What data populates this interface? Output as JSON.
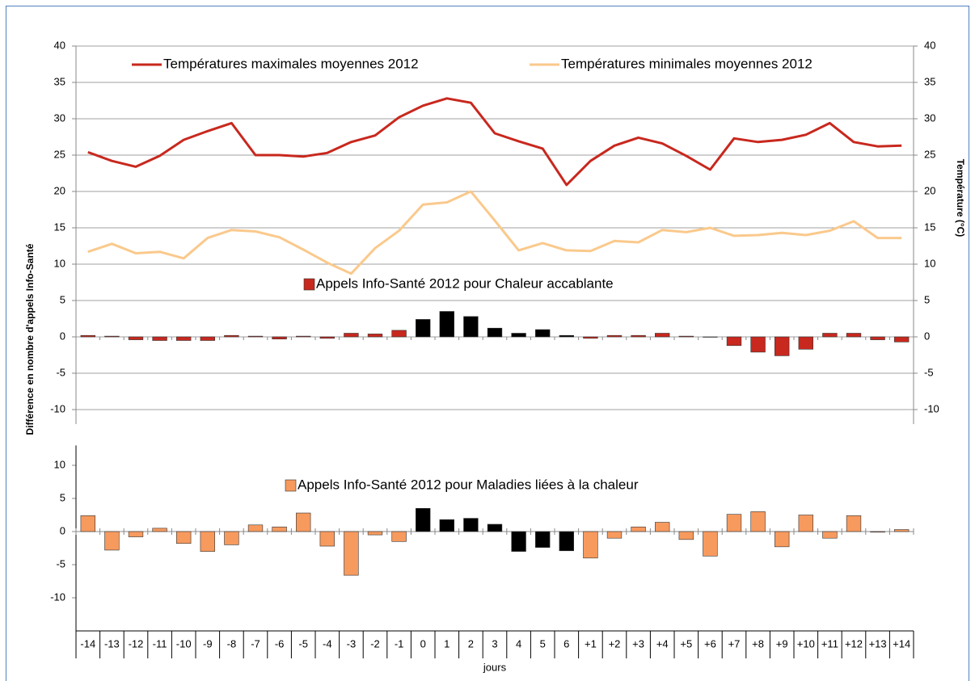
{
  "chart_data": [
    {
      "type": "combo",
      "ylabel": "Différence en nombre d'appels Info-Santé",
      "y2label": "Température (°C)",
      "ylim": [
        -12,
        40
      ],
      "yticks": [
        40,
        35,
        30,
        25,
        20,
        15,
        10,
        5,
        0,
        -5,
        -10
      ],
      "y2lim": [
        -12,
        40
      ],
      "y2ticks": [
        40,
        35,
        30,
        25,
        20,
        15,
        10,
        5,
        0,
        -5,
        -10
      ],
      "grid": true,
      "series": [
        {
          "name": "Températures maximales moyennes 2012",
          "type": "line",
          "axis": "y2",
          "color": "#c8281e",
          "values": [
            25.4,
            24.2,
            23.4,
            24.9,
            27.1,
            28.3,
            29.4,
            25.0,
            25.0,
            24.8,
            25.3,
            26.8,
            27.7,
            30.2,
            31.8,
            32.8,
            32.2,
            28.0,
            26.9,
            25.9,
            20.9,
            24.2,
            26.3,
            27.4,
            26.6,
            24.9,
            23.0,
            27.3,
            26.8,
            27.1,
            27.8,
            29.4,
            26.8,
            26.2,
            26.3
          ]
        },
        {
          "name": "Températures minimales moyennes 2012",
          "type": "line",
          "axis": "y2",
          "color": "#fac98c",
          "values": [
            11.7,
            12.8,
            11.5,
            11.7,
            10.8,
            13.6,
            14.7,
            14.5,
            13.7,
            12.0,
            10.2,
            8.7,
            12.2,
            14.6,
            18.2,
            18.5,
            20.0,
            16.0,
            11.9,
            12.9,
            11.9,
            11.8,
            13.2,
            13.0,
            14.7,
            14.4,
            15.0,
            13.9,
            14.0,
            14.3,
            14.0,
            14.6,
            15.9,
            13.6,
            13.6
          ]
        },
        {
          "name": "Appels Info-Santé 2012 pour Chaleur accablante",
          "type": "bar",
          "color": "#c8281e",
          "colors": [
            "#c8281e",
            "#c8281e",
            "#c8281e",
            "#c8281e",
            "#c8281e",
            "#c8281e",
            "#c8281e",
            "#c8281e",
            "#c8281e",
            "#c8281e",
            "#c8281e",
            "#c8281e",
            "#c8281e",
            "#c8281e",
            "#000000",
            "#000000",
            "#000000",
            "#000000",
            "#000000",
            "#000000",
            "#000000",
            "#c8281e",
            "#c8281e",
            "#c8281e",
            "#c8281e",
            "#c8281e",
            "#c8281e",
            "#c8281e",
            "#c8281e",
            "#c8281e",
            "#c8281e",
            "#c8281e",
            "#c8281e",
            "#c8281e",
            "#c8281e"
          ],
          "values": [
            0.2,
            0.1,
            -0.4,
            -0.5,
            -0.5,
            -0.5,
            0.2,
            0.1,
            -0.3,
            0.1,
            -0.2,
            0.5,
            0.4,
            0.9,
            2.4,
            3.5,
            2.8,
            1.2,
            0.5,
            1.0,
            0.2,
            -0.2,
            0.2,
            0.2,
            0.5,
            0.1,
            0,
            -1.2,
            -2.1,
            -2.6,
            -1.7,
            0.5,
            0.5,
            -0.4,
            -0.7
          ]
        }
      ]
    },
    {
      "type": "bar",
      "xlabel": "jours",
      "categories": [
        "-14",
        "-13",
        "-12",
        "-11",
        "-10",
        "-9",
        "-8",
        "-7",
        "-6",
        "-5",
        "-4",
        "-3",
        "-2",
        "-1",
        "0",
        "1",
        "2",
        "3",
        "4",
        "5",
        "6",
        "+1",
        "+2",
        "+3",
        "+4",
        "+5",
        "+6",
        "+7",
        "+8",
        "+9",
        "+10",
        "+11",
        "+12",
        "+13",
        "+14"
      ],
      "ylim": [
        -15,
        13
      ],
      "yticks": [
        10,
        5,
        0,
        -5,
        -10
      ],
      "series": [
        {
          "name": "Appels Info-Santé 2012 pour Maladies liées à la chaleur",
          "color": "#f79a5e",
          "colors": [
            "#f79a5e",
            "#f79a5e",
            "#f79a5e",
            "#f79a5e",
            "#f79a5e",
            "#f79a5e",
            "#f79a5e",
            "#f79a5e",
            "#f79a5e",
            "#f79a5e",
            "#f79a5e",
            "#f79a5e",
            "#f79a5e",
            "#f79a5e",
            "#000000",
            "#000000",
            "#000000",
            "#000000",
            "#000000",
            "#000000",
            "#000000",
            "#f79a5e",
            "#f79a5e",
            "#f79a5e",
            "#f79a5e",
            "#f79a5e",
            "#f79a5e",
            "#f79a5e",
            "#f79a5e",
            "#f79a5e",
            "#f79a5e",
            "#f79a5e",
            "#f79a5e",
            "#f79a5e",
            "#f79a5e"
          ],
          "values": [
            2.4,
            -2.8,
            -0.8,
            0.5,
            -1.8,
            -3.0,
            -2.0,
            1.0,
            0.7,
            2.8,
            -2.2,
            -6.6,
            -0.5,
            -1.5,
            3.5,
            1.8,
            2.0,
            1.1,
            -3.0,
            -2.4,
            -2.9,
            -4.0,
            -1.0,
            0.7,
            1.4,
            -1.2,
            -3.7,
            2.6,
            3.0,
            -2.3,
            2.5,
            -1.0,
            2.4,
            -0.1,
            0.3
          ]
        }
      ]
    }
  ]
}
